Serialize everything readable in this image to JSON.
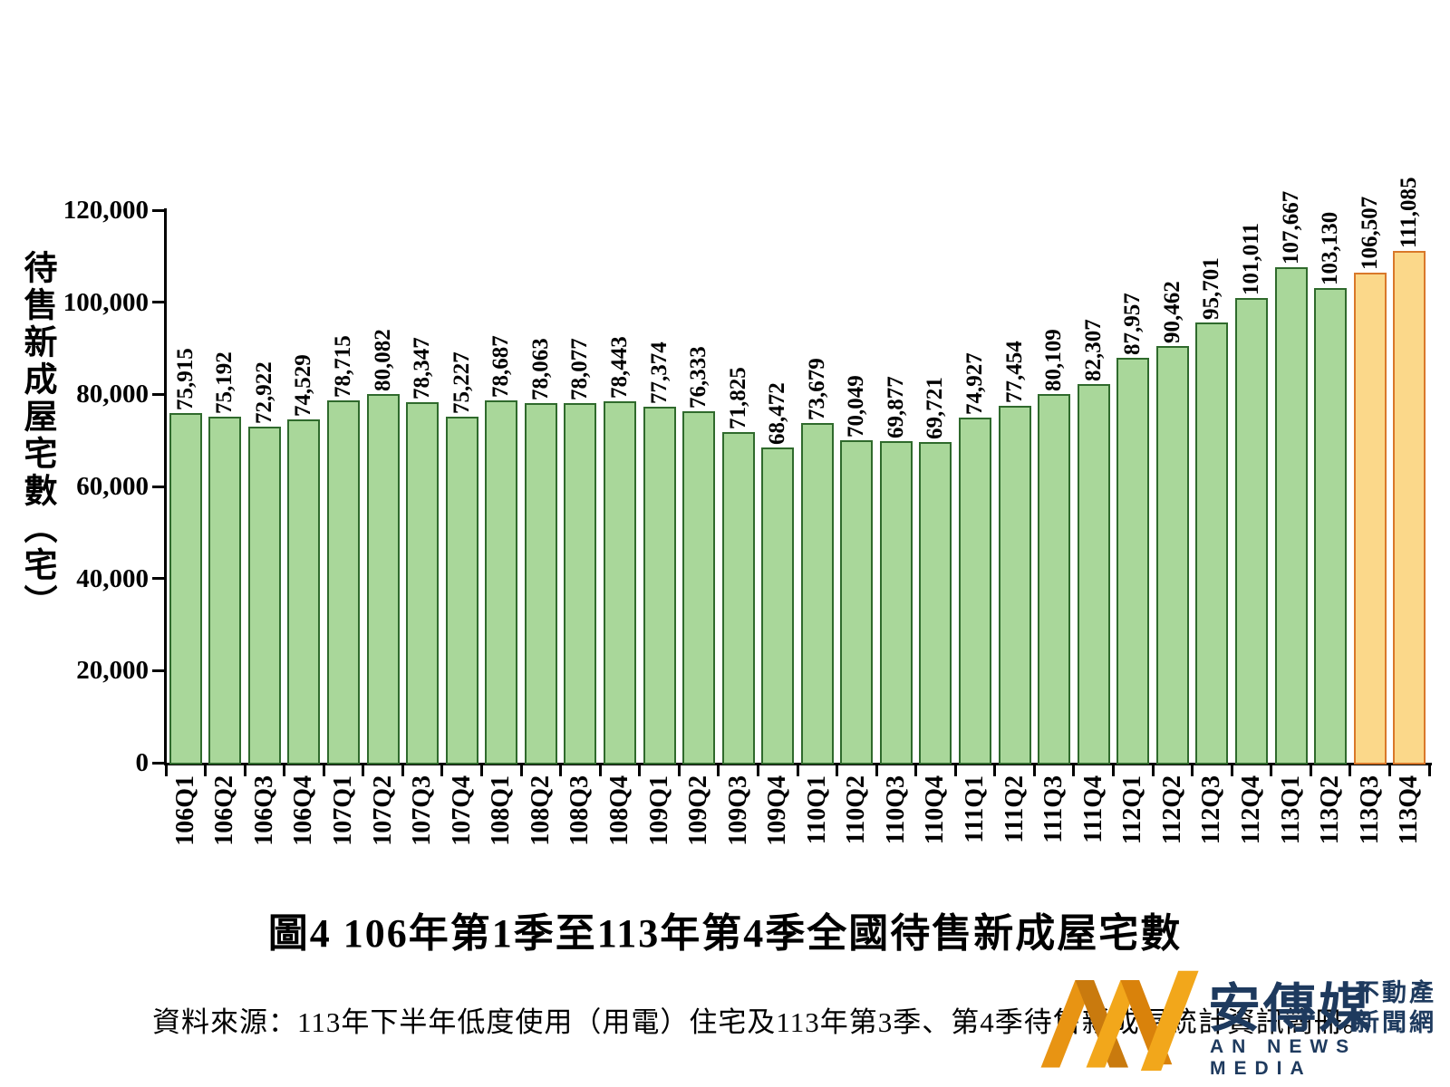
{
  "chart_data": {
    "type": "bar",
    "title": "圖4 106年第1季至113年第4季全國待售新成屋宅數",
    "ylabel": "待售新成屋宅數（宅）",
    "xlabel": "",
    "ylim": [
      0,
      120000
    ],
    "y_ticks": [
      "0",
      "20,000",
      "40,000",
      "60,000",
      "80,000",
      "100,000",
      "120,000"
    ],
    "grid": false,
    "legend": "none",
    "categories": [
      "106Q1",
      "106Q2",
      "106Q3",
      "106Q4",
      "107Q1",
      "107Q2",
      "107Q3",
      "107Q4",
      "108Q1",
      "108Q2",
      "108Q3",
      "108Q4",
      "109Q1",
      "109Q2",
      "109Q3",
      "109Q4",
      "110Q1",
      "110Q2",
      "110Q3",
      "110Q4",
      "111Q1",
      "111Q2",
      "111Q3",
      "111Q4",
      "112Q1",
      "112Q2",
      "112Q3",
      "112Q4",
      "113Q1",
      "113Q2",
      "113Q3",
      "113Q4"
    ],
    "values": [
      75915,
      75192,
      72922,
      74529,
      78715,
      80082,
      78347,
      75227,
      78687,
      78063,
      78077,
      78443,
      77374,
      76333,
      71825,
      68472,
      73679,
      70049,
      69877,
      69721,
      74927,
      77454,
      80109,
      82307,
      87957,
      90462,
      95701,
      101011,
      107667,
      103130,
      106507,
      111085
    ],
    "highlight_from_index": 30,
    "colors": {
      "bar_fill": "#a9d79a",
      "bar_border": "#2f6a2c",
      "highlight_fill": "#fbd88a",
      "highlight_border": "#d9782a"
    }
  },
  "caption": {
    "title": "圖4 106年第1季至113年第4季全國待售新成屋宅數",
    "source": "資料來源：113年下半年低度使用（用電）住宅及113年第3季、第4季待售新成屋統計資訊簡冊。"
  },
  "logo": {
    "name_zh": "安傳媒",
    "tagline_line1": "不動產",
    "tagline_line2": "新聞網",
    "name_en": "AN NEWS MEDIA",
    "colors": {
      "navy": "#1e3a5e",
      "gold": "#f2a71b",
      "dark_gold": "#d9820b"
    }
  }
}
